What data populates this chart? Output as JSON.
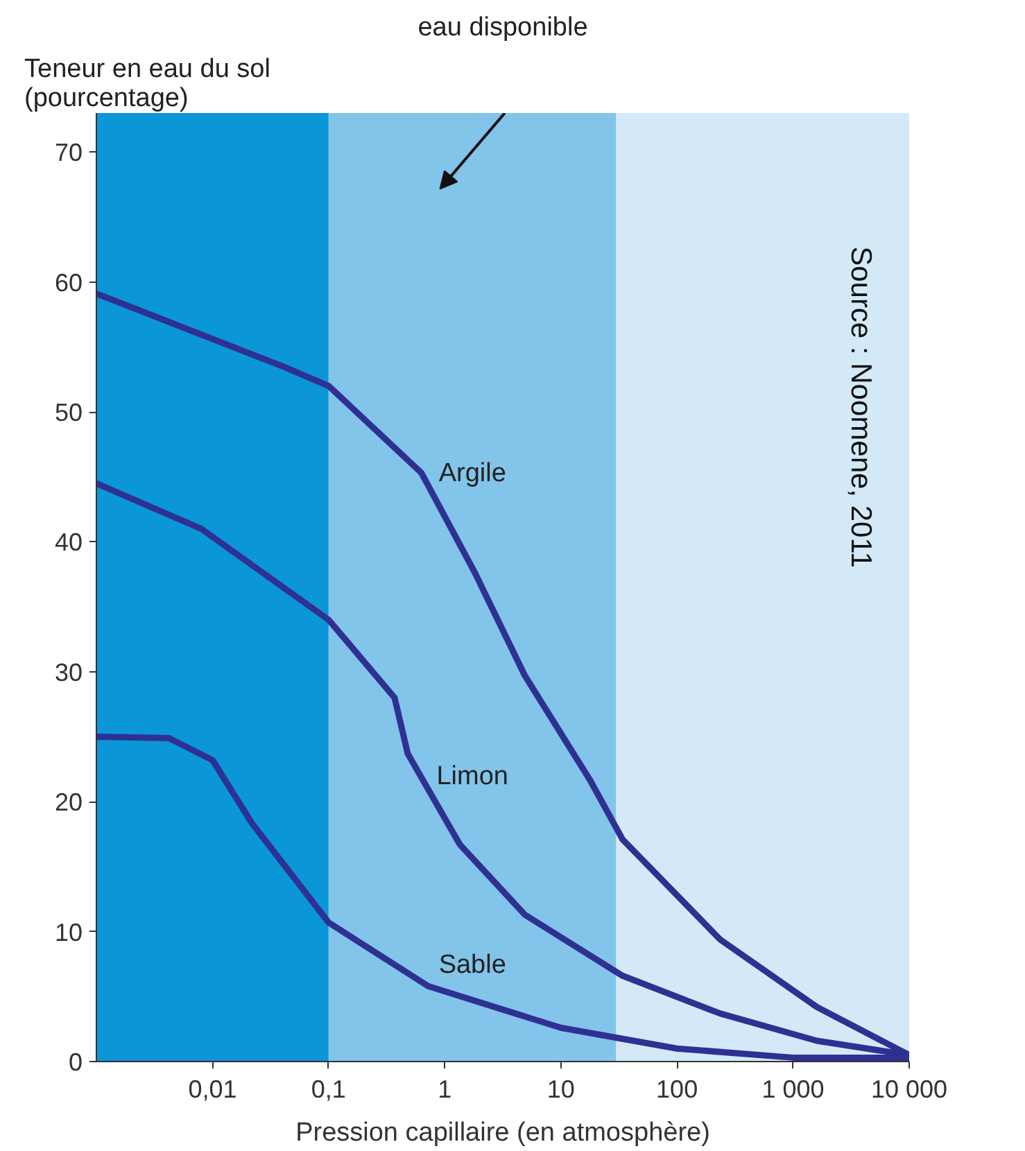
{
  "chart_data": {
    "type": "line",
    "ylabel": "Teneur en eau du sol\n(pourcentage)",
    "xlabel": "Pression capillaire (en atmosphère)",
    "log": "x",
    "xlim": [
      0.001,
      10000
    ],
    "ylim": [
      0,
      73
    ],
    "xticks": [
      {
        "value": 0.01,
        "label": "0,01"
      },
      {
        "value": 0.1,
        "label": "0,1"
      },
      1,
      10,
      100,
      {
        "value": 1000,
        "label": "1 000"
      },
      {
        "value": 10000,
        "label": "10 000"
      }
    ],
    "yticks": [
      0,
      10,
      20,
      30,
      40,
      50,
      60,
      70
    ],
    "grid": false,
    "bands": [
      {
        "axis": "x",
        "from": 0.001,
        "to": 0.1,
        "color": "#0b96d8"
      },
      {
        "axis": "x",
        "from": 0.1,
        "to": 30,
        "color": "#83c4ea",
        "label": "eau disponible"
      },
      {
        "axis": "x",
        "from": 30,
        "to": 10000,
        "color": "#d4e9f7"
      }
    ],
    "series": [
      {
        "name": "Argile",
        "color": "#2e3192",
        "x": [
          0.001,
          0.043,
          0.1,
          0.63,
          1.8,
          4.9,
          18,
          34,
          235,
          1600,
          10000
        ],
        "values": [
          59.1,
          53.4,
          52,
          45.3,
          37.7,
          29.7,
          21.6,
          17.1,
          9.4,
          4.2,
          0.5
        ]
      },
      {
        "name": "Limon",
        "color": "#2e3192",
        "x": [
          0.001,
          0.008,
          0.1,
          0.37,
          0.48,
          1.35,
          4.9,
          34,
          235,
          1600,
          10000
        ],
        "values": [
          44.5,
          41,
          34,
          28,
          23.7,
          16.7,
          11.3,
          6.6,
          3.7,
          1.6,
          0.5
        ]
      },
      {
        "name": "Sable",
        "color": "#2e3192",
        "x": [
          0.001,
          0.0042,
          0.01,
          0.022,
          0.1,
          0.72,
          10,
          100,
          1000,
          10000
        ],
        "values": [
          25,
          24.9,
          23.2,
          18.3,
          10.7,
          5.8,
          2.6,
          1,
          0.3,
          0.3
        ]
      }
    ],
    "annotations": [
      "Source : Noomene, 2011"
    ]
  }
}
